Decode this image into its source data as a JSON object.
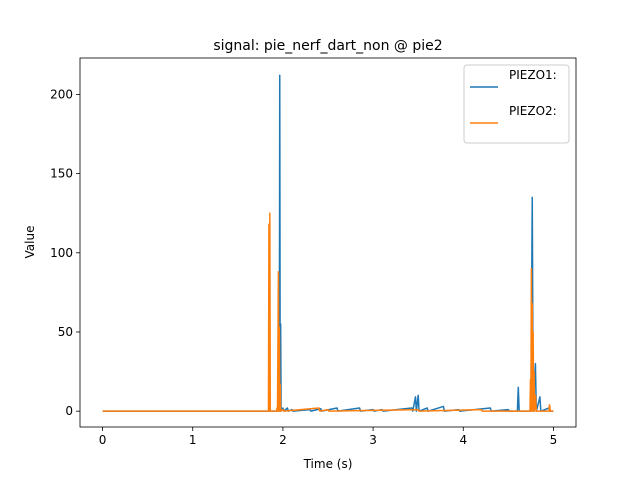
{
  "chart_data": {
    "type": "line",
    "title": "signal: pie_nerf_dart_non @ pie2",
    "xlabel": "Time (s)",
    "ylabel": "Value",
    "xlim": [
      -0.25,
      5.25
    ],
    "ylim": [
      -10,
      223
    ],
    "xticks": [
      0,
      1,
      2,
      3,
      4,
      5
    ],
    "yticks": [
      0,
      50,
      100,
      150,
      200
    ],
    "grid": false,
    "legend_position": "top-right",
    "series": [
      {
        "name": "PIEZO1:",
        "color": "#1f77b4",
        "points": [
          [
            0,
            0
          ],
          [
            1.94,
            0
          ],
          [
            1.95,
            3
          ],
          [
            1.955,
            0
          ],
          [
            1.96,
            0
          ],
          [
            1.965,
            212
          ],
          [
            1.97,
            0
          ],
          [
            1.975,
            55
          ],
          [
            1.98,
            0
          ],
          [
            2.0,
            2
          ],
          [
            2.01,
            0
          ],
          [
            2.05,
            2
          ],
          [
            2.06,
            0
          ],
          [
            2.1,
            1
          ],
          [
            2.11,
            0
          ],
          [
            2.3,
            1
          ],
          [
            2.31,
            0
          ],
          [
            2.42,
            1.5
          ],
          [
            2.43,
            0
          ],
          [
            2.6,
            2
          ],
          [
            2.61,
            0
          ],
          [
            2.85,
            2
          ],
          [
            2.86,
            0
          ],
          [
            3.0,
            1
          ],
          [
            3.01,
            0
          ],
          [
            3.1,
            1
          ],
          [
            3.11,
            0
          ],
          [
            3.43,
            2
          ],
          [
            3.44,
            0
          ],
          [
            3.47,
            9
          ],
          [
            3.48,
            0
          ],
          [
            3.5,
            10
          ],
          [
            3.51,
            0
          ],
          [
            3.6,
            2
          ],
          [
            3.61,
            0
          ],
          [
            3.78,
            3
          ],
          [
            3.79,
            0
          ],
          [
            3.95,
            1
          ],
          [
            3.96,
            0
          ],
          [
            4.3,
            2
          ],
          [
            4.31,
            0
          ],
          [
            4.5,
            1
          ],
          [
            4.51,
            0
          ],
          [
            4.6,
            0
          ],
          [
            4.61,
            15
          ],
          [
            4.62,
            0
          ],
          [
            4.75,
            0
          ],
          [
            4.765,
            135
          ],
          [
            4.775,
            0
          ],
          [
            4.8,
            30
          ],
          [
            4.81,
            0
          ],
          [
            4.85,
            9
          ],
          [
            4.86,
            0
          ],
          [
            4.95,
            2
          ],
          [
            4.96,
            0
          ],
          [
            5.0,
            0
          ]
        ]
      },
      {
        "name": "PIEZO2:",
        "color": "#ff7f0e",
        "points": [
          [
            0,
            0
          ],
          [
            1.84,
            0
          ],
          [
            1.845,
            118
          ],
          [
            1.85,
            0
          ],
          [
            1.855,
            125
          ],
          [
            1.86,
            0
          ],
          [
            1.93,
            0
          ],
          [
            1.935,
            2
          ],
          [
            1.94,
            0
          ],
          [
            1.95,
            88
          ],
          [
            1.955,
            0
          ],
          [
            1.96,
            53
          ],
          [
            1.965,
            0
          ],
          [
            1.97,
            17
          ],
          [
            1.975,
            0
          ],
          [
            2.0,
            1
          ],
          [
            2.01,
            0
          ],
          [
            2.4,
            2
          ],
          [
            2.41,
            0
          ],
          [
            2.5,
            1
          ],
          [
            2.51,
            0
          ],
          [
            3.5,
            1
          ],
          [
            3.51,
            0
          ],
          [
            4.2,
            1
          ],
          [
            4.21,
            0
          ],
          [
            4.74,
            0
          ],
          [
            4.745,
            20
          ],
          [
            4.75,
            0
          ],
          [
            4.755,
            90
          ],
          [
            4.76,
            0
          ],
          [
            4.765,
            68
          ],
          [
            4.77,
            0
          ],
          [
            4.775,
            50
          ],
          [
            4.78,
            0
          ],
          [
            4.785,
            25
          ],
          [
            4.79,
            0
          ],
          [
            4.8,
            10
          ],
          [
            4.81,
            0
          ],
          [
            4.95,
            0
          ],
          [
            4.955,
            4
          ],
          [
            4.96,
            3
          ],
          [
            4.965,
            0
          ],
          [
            5.0,
            0
          ]
        ]
      }
    ]
  }
}
